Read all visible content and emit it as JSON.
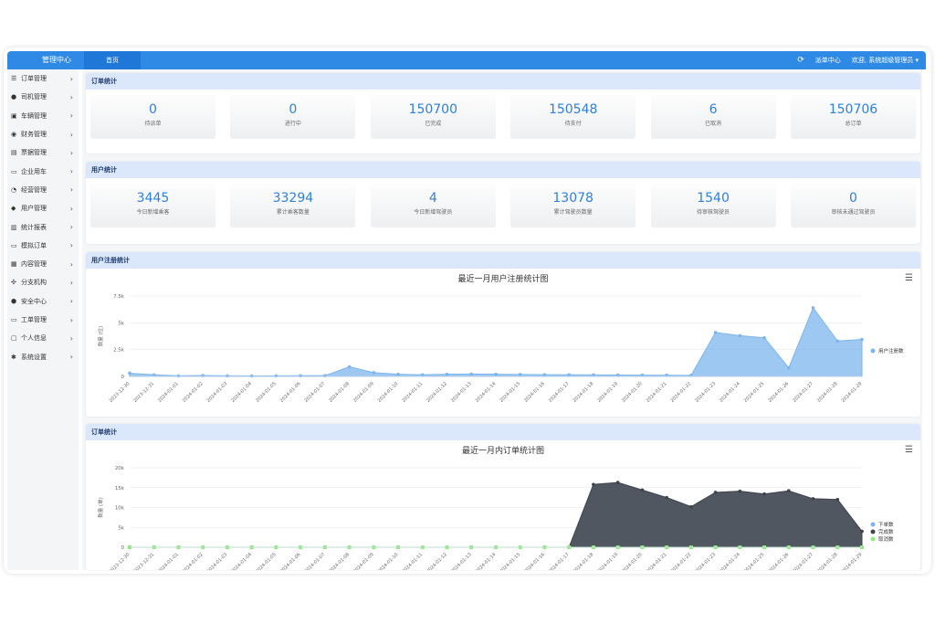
{
  "header": {
    "brand": "管理中心",
    "tab_home": "首页",
    "order_center": "派单中心",
    "welcome": "欢迎, 系统超级管理员 ▾"
  },
  "sidebar": {
    "items": [
      {
        "label": "订单管理",
        "icon": "list-icon"
      },
      {
        "label": "司机管理",
        "icon": "user-icon"
      },
      {
        "label": "车辆管理",
        "icon": "car-icon"
      },
      {
        "label": "财务管理",
        "icon": "coin-icon"
      },
      {
        "label": "票据管理",
        "icon": "ticket-icon"
      },
      {
        "label": "企业用车",
        "icon": "monitor-icon"
      },
      {
        "label": "经营管理",
        "icon": "pie-icon"
      },
      {
        "label": "用户管理",
        "icon": "users-icon"
      },
      {
        "label": "统计报表",
        "icon": "bar-chart-icon"
      },
      {
        "label": "模拟订单",
        "icon": "monitor-icon"
      },
      {
        "label": "内容管理",
        "icon": "grid-icon"
      },
      {
        "label": "分支机构",
        "icon": "branch-icon"
      },
      {
        "label": "安全中心",
        "icon": "shield-icon"
      },
      {
        "label": "工单管理",
        "icon": "monitor-icon"
      },
      {
        "label": "个人信息",
        "icon": "id-card-icon"
      },
      {
        "label": "系统设置",
        "icon": "gear-icon"
      }
    ]
  },
  "order_stats": {
    "title": "订单统计",
    "items": [
      {
        "value": "0",
        "label": "待派单"
      },
      {
        "value": "0",
        "label": "进行中"
      },
      {
        "value": "150700",
        "label": "已完成"
      },
      {
        "value": "150548",
        "label": "待支付"
      },
      {
        "value": "6",
        "label": "已取消"
      },
      {
        "value": "150706",
        "label": "总订单"
      }
    ]
  },
  "user_stats": {
    "title": "用户统计",
    "items": [
      {
        "value": "3445",
        "label": "今日新增乘客"
      },
      {
        "value": "33294",
        "label": "累计乘客数量"
      },
      {
        "value": "4",
        "label": "今日新增驾驶员"
      },
      {
        "value": "13078",
        "label": "累计驾驶员数量"
      },
      {
        "value": "1540",
        "label": "待审核驾驶员"
      },
      {
        "value": "0",
        "label": "审核未通过驾驶员"
      }
    ]
  },
  "reg_panel": {
    "title": "用户注册统计"
  },
  "order_panel": {
    "title": "订单统计"
  },
  "chart_data": [
    {
      "type": "area",
      "title": "最近一月用户注册统计图",
      "ylabel": "数量 (位)",
      "yticks": [
        "0",
        "2.5k",
        "5k",
        "7.5k"
      ],
      "ylim": [
        0,
        7500
      ],
      "x": [
        "2023-12-30",
        "2023-12-31",
        "2024-01-01",
        "2024-01-02",
        "2024-01-03",
        "2024-01-04",
        "2024-01-05",
        "2024-01-06",
        "2024-01-07",
        "2024-01-08",
        "2024-01-09",
        "2024-01-10",
        "2024-01-11",
        "2024-01-12",
        "2024-01-13",
        "2024-01-14",
        "2024-01-15",
        "2024-01-16",
        "2024-01-17",
        "2024-01-18",
        "2024-01-19",
        "2024-01-20",
        "2024-01-21",
        "2024-01-22",
        "2024-01-23",
        "2024-01-24",
        "2024-01-25",
        "2024-01-26",
        "2024-01-27",
        "2024-01-28",
        "2024-01-29"
      ],
      "series": [
        {
          "name": "用户注册数",
          "color": "#7cb5ec",
          "values": [
            300,
            150,
            50,
            80,
            50,
            40,
            50,
            60,
            70,
            900,
            350,
            200,
            150,
            200,
            220,
            200,
            180,
            160,
            150,
            140,
            130,
            120,
            110,
            100,
            4100,
            3800,
            3600,
            800,
            6400,
            3300,
            3450
          ]
        }
      ],
      "legend": "right"
    },
    {
      "type": "area",
      "title": "最近一月内订单统计图",
      "ylabel": "数量 (单)",
      "yticks": [
        "0",
        "5k",
        "10k",
        "15k",
        "20k"
      ],
      "ylim": [
        0,
        20000
      ],
      "x": [
        "2023-12-30",
        "2023-12-31",
        "2024-01-01",
        "2024-01-02",
        "2024-01-03",
        "2024-01-04",
        "2024-01-05",
        "2024-01-06",
        "2024-01-07",
        "2024-01-08",
        "2024-01-09",
        "2024-01-10",
        "2024-01-11",
        "2024-01-12",
        "2024-01-13",
        "2024-01-14",
        "2024-01-15",
        "2024-01-16",
        "2024-01-17",
        "2024-01-18",
        "2024-01-19",
        "2024-01-20",
        "2024-01-21",
        "2024-01-22",
        "2024-01-23",
        "2024-01-24",
        "2024-01-25",
        "2024-01-26",
        "2024-01-27",
        "2024-01-28",
        "2024-01-29"
      ],
      "series": [
        {
          "name": "下单数",
          "color": "#7cb5ec",
          "values": [
            0,
            0,
            0,
            0,
            0,
            0,
            0,
            0,
            0,
            0,
            0,
            0,
            0,
            0,
            0,
            0,
            0,
            0,
            0,
            15800,
            16300,
            14400,
            12500,
            10200,
            13800,
            14100,
            13400,
            14200,
            12200,
            12000,
            4000
          ]
        },
        {
          "name": "完成数",
          "color": "#434348",
          "values": [
            0,
            0,
            0,
            0,
            0,
            0,
            0,
            0,
            0,
            0,
            0,
            0,
            0,
            0,
            0,
            0,
            0,
            0,
            0,
            15800,
            16300,
            14400,
            12500,
            10200,
            13800,
            14100,
            13400,
            14200,
            12200,
            12000,
            4000
          ]
        },
        {
          "name": "取消数",
          "color": "#90ed7d",
          "values": [
            0,
            0,
            0,
            0,
            0,
            0,
            0,
            0,
            0,
            0,
            0,
            0,
            0,
            0,
            0,
            0,
            0,
            0,
            0,
            0,
            0,
            0,
            0,
            0,
            0,
            0,
            0,
            0,
            0,
            0,
            0
          ]
        }
      ],
      "legend": "right"
    }
  ]
}
